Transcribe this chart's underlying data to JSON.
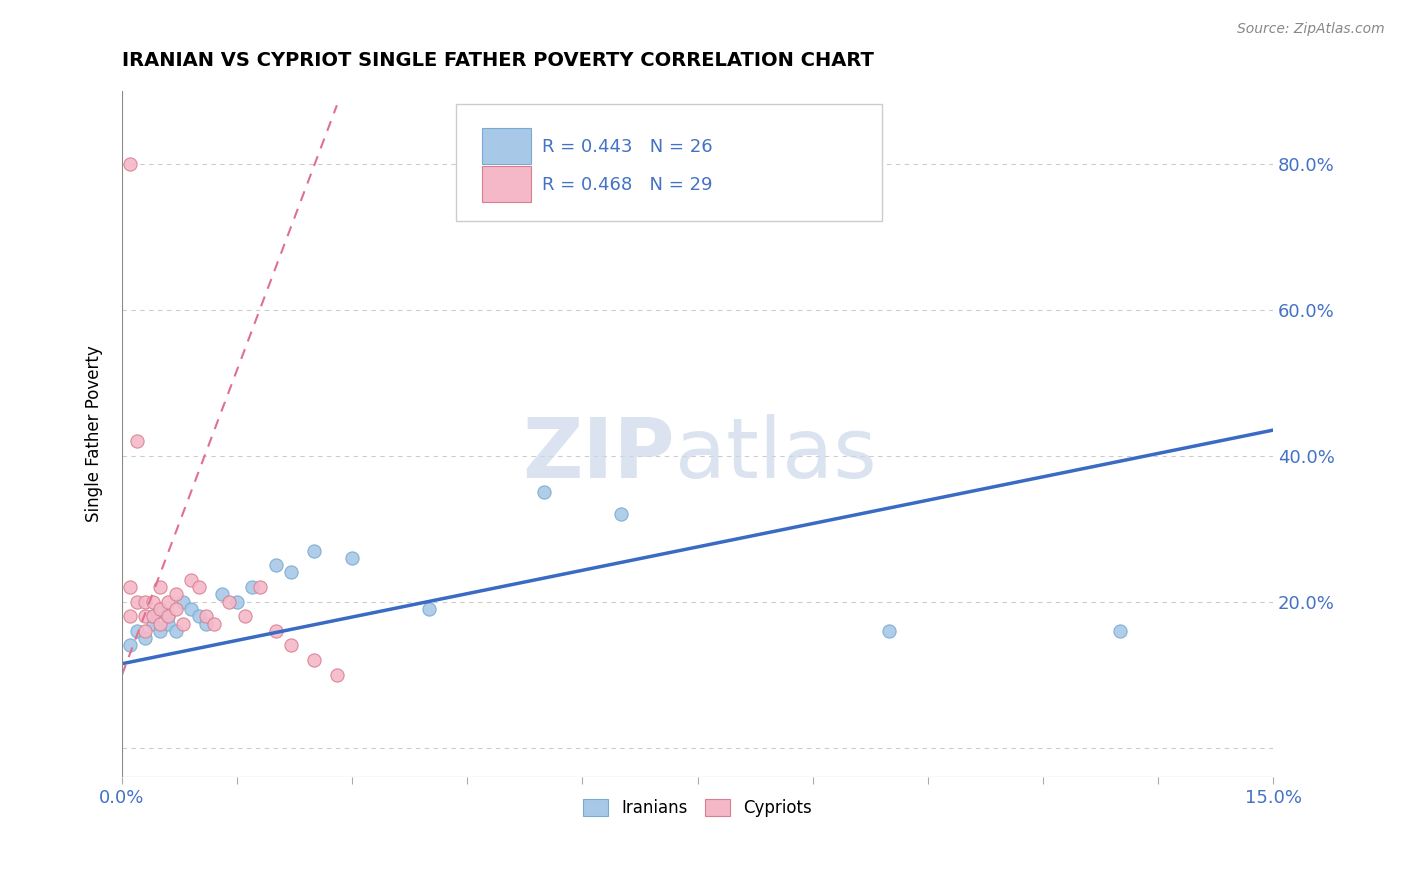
{
  "title": "IRANIAN VS CYPRIOT SINGLE FATHER POVERTY CORRELATION CHART",
  "source": "Source: ZipAtlas.com",
  "ylabel": "Single Father Poverty",
  "xlim": [
    0.0,
    0.15
  ],
  "ylim": [
    -0.04,
    0.9
  ],
  "xticks": [
    0.0,
    0.05,
    0.1,
    0.15
  ],
  "xtick_labels": [
    "0.0%",
    "",
    "",
    "15.0%"
  ],
  "yticks": [
    0.0,
    0.2,
    0.4,
    0.6,
    0.8
  ],
  "ytick_labels": [
    "",
    "20.0%",
    "40.0%",
    "60.0%",
    "80.0%"
  ],
  "grid_color": "#cccccc",
  "background_color": "#ffffff",
  "iranians_color": "#a8c8e8",
  "iranians_edge_color": "#7aaad0",
  "cypriots_color": "#f4b8c8",
  "cypriots_edge_color": "#d88090",
  "iranian_R": 0.443,
  "iranian_N": 26,
  "cypriot_R": 0.468,
  "cypriot_N": 29,
  "legend_text_color": "#4472c4",
  "iranians_x": [
    0.001,
    0.002,
    0.003,
    0.004,
    0.004,
    0.005,
    0.005,
    0.006,
    0.006,
    0.007,
    0.008,
    0.009,
    0.01,
    0.011,
    0.013,
    0.015,
    0.017,
    0.02,
    0.022,
    0.025,
    0.03,
    0.04,
    0.055,
    0.065,
    0.1,
    0.13
  ],
  "iranians_y": [
    0.14,
    0.16,
    0.15,
    0.17,
    0.18,
    0.16,
    0.19,
    0.18,
    0.17,
    0.16,
    0.2,
    0.19,
    0.18,
    0.17,
    0.21,
    0.2,
    0.22,
    0.25,
    0.24,
    0.27,
    0.26,
    0.19,
    0.35,
    0.32,
    0.16,
    0.16
  ],
  "cypriots_x": [
    0.001,
    0.001,
    0.001,
    0.002,
    0.002,
    0.003,
    0.003,
    0.003,
    0.004,
    0.004,
    0.005,
    0.005,
    0.005,
    0.006,
    0.006,
    0.007,
    0.007,
    0.008,
    0.009,
    0.01,
    0.011,
    0.012,
    0.014,
    0.016,
    0.018,
    0.02,
    0.022,
    0.025,
    0.028
  ],
  "cypriots_y": [
    0.8,
    0.22,
    0.18,
    0.42,
    0.2,
    0.2,
    0.18,
    0.16,
    0.18,
    0.2,
    0.22,
    0.19,
    0.17,
    0.2,
    0.18,
    0.21,
    0.19,
    0.17,
    0.23,
    0.22,
    0.18,
    0.17,
    0.2,
    0.18,
    0.22,
    0.16,
    0.14,
    0.12,
    0.1
  ],
  "blue_line_x": [
    0.0,
    0.15
  ],
  "blue_line_y": [
    0.115,
    0.435
  ],
  "pink_line_x": [
    0.0,
    0.028
  ],
  "pink_line_y": [
    0.1,
    0.88
  ],
  "watermark_zip": "ZIP",
  "watermark_atlas": "atlas",
  "marker_size": 90
}
